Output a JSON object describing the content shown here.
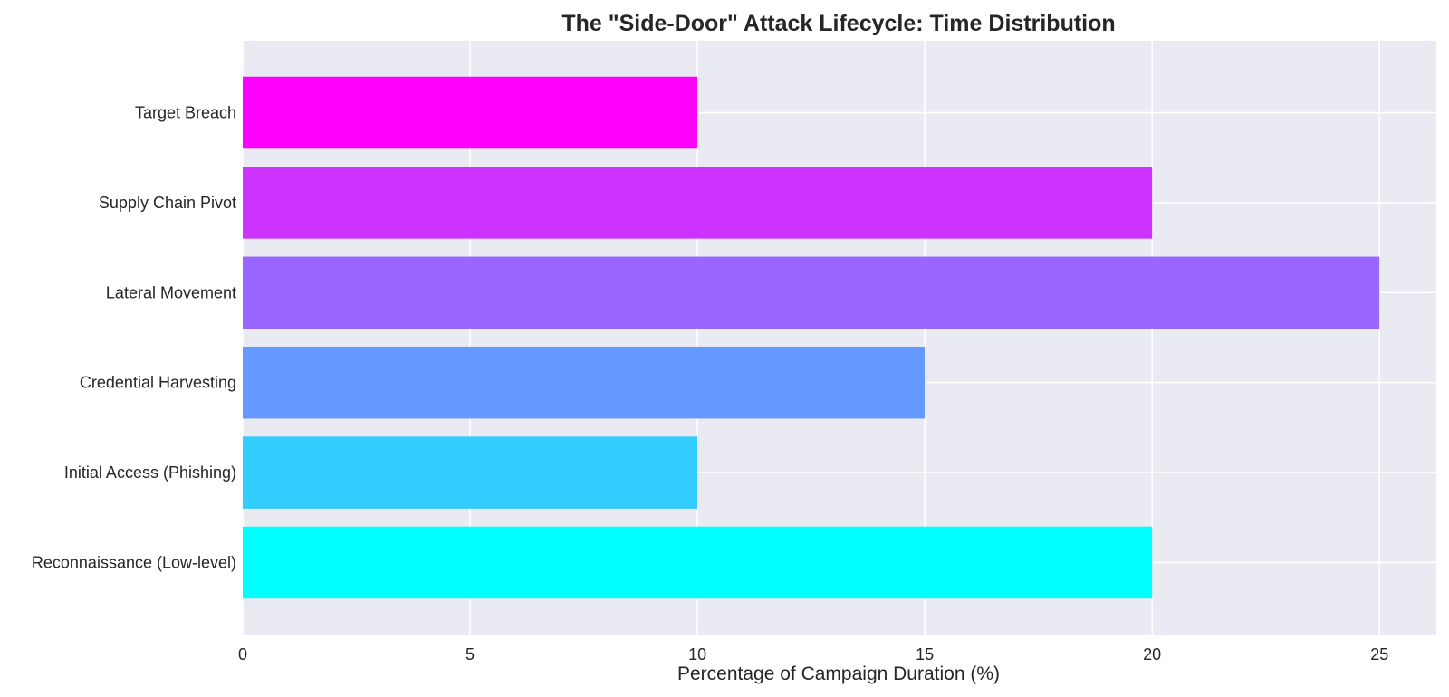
{
  "chart_data": {
    "type": "bar",
    "orientation": "horizontal",
    "title": "The \"Side-Door\" Attack Lifecycle: Time Distribution",
    "xlabel": "Percentage of Campaign Duration (%)",
    "ylabel": "",
    "categories": [
      "Reconnaissance (Low-level)",
      "Initial Access (Phishing)",
      "Credential Harvesting",
      "Lateral Movement",
      "Supply Chain Pivot",
      "Target Breach"
    ],
    "values": [
      20,
      10,
      15,
      25,
      20,
      10
    ],
    "colors": [
      "#00ffff",
      "#33ccff",
      "#6699ff",
      "#9966ff",
      "#cc33ff",
      "#ff00ff"
    ],
    "xlim": [
      0,
      26.25
    ],
    "xticks": [
      0,
      5,
      10,
      15,
      20,
      25
    ],
    "xtick_labels": [
      "0",
      "5",
      "10",
      "15",
      "20",
      "25"
    ],
    "grid": true,
    "background": "#eaeaf2",
    "grid_color": "#ffffff"
  }
}
